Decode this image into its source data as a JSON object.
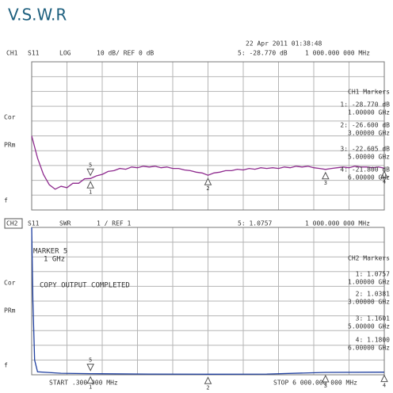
{
  "title": "V.S.W.R",
  "timestamp": "22 Apr 2011  01:38:48",
  "start_label": "START .300 000 MHz",
  "stop_label": "STOP 6 000.000 000 MHz",
  "chart_data": [
    {
      "type": "line",
      "channel": "CH1",
      "param": "S11",
      "format": "LOG",
      "scale": "10 dB/ REF 0 dB",
      "active_marker": "5: -28.770 dB",
      "active_freq": "1 000.000 000 MHz",
      "side_labels": [
        "Cor",
        "PRm",
        "f"
      ],
      "markers_title": "CH1 Markers",
      "xlim": [
        0.3,
        6000
      ],
      "ylim": [
        -50,
        50
      ],
      "x": [
        0.3,
        100,
        200,
        300,
        400,
        500,
        600,
        700,
        800,
        900,
        1000,
        1100,
        1200,
        1300,
        1400,
        1500,
        1600,
        1700,
        1800,
        1900,
        2000,
        2100,
        2200,
        2300,
        2400,
        2500,
        2600,
        2700,
        2800,
        2900,
        3000,
        3100,
        3200,
        3300,
        3400,
        3500,
        3600,
        3700,
        3800,
        3900,
        4000,
        4100,
        4200,
        4300,
        4400,
        4500,
        4600,
        4700,
        4800,
        4900,
        5000,
        5100,
        5200,
        5300,
        5400,
        5500,
        5600,
        5700,
        5800,
        5900,
        6000
      ],
      "series": [
        {
          "color": "#8e2a8e",
          "values": [
            0,
            -15,
            -26,
            -33,
            -36,
            -34,
            -35,
            -32,
            -32,
            -29,
            -28.77,
            -27,
            -26,
            -24,
            -23.5,
            -22,
            -22.5,
            -21,
            -21.5,
            -20.5,
            -21,
            -20.5,
            -21.5,
            -21,
            -22,
            -22,
            -23,
            -23.5,
            -24.5,
            -25,
            -26.6,
            -25,
            -24.5,
            -23.5,
            -23.5,
            -22.5,
            -23,
            -22,
            -22.5,
            -21.5,
            -22,
            -21.5,
            -22,
            -21,
            -21.5,
            -20.5,
            -21,
            -20.5,
            -21.5,
            -22,
            -22.6,
            -22,
            -21.5,
            -21,
            -21.5,
            -20.5,
            -21,
            -21,
            -21.5,
            -21,
            -21.8
          ]
        }
      ],
      "markers": [
        {
          "id": "1",
          "x": 1000,
          "value": -28.77,
          "value_label": "1: -28.770 dB",
          "freq_label": "1.00000 GHz"
        },
        {
          "id": "2",
          "x": 3000,
          "value": -26.6,
          "value_label": "2: -26.600 dB",
          "freq_label": "3.00000 GHz"
        },
        {
          "id": "3",
          "x": 5000,
          "value": -22.605,
          "value_label": "3: -22.605 dB",
          "freq_label": "5.00000 GHz"
        },
        {
          "id": "4",
          "x": 6000,
          "value": -21.8,
          "value_label": "4: -21.800 dB",
          "freq_label": "6.00000 GHz"
        },
        {
          "id": "5",
          "x": 1000,
          "value": -28.77
        }
      ]
    },
    {
      "type": "line",
      "channel": "CH2",
      "param": "S11",
      "format": "SWR",
      "scale": "1 / REF 1",
      "active_marker": "5: 1.0757",
      "active_freq": "1 000.000 000 MHz",
      "side_labels": [
        "Cor",
        "PRm",
        "f"
      ],
      "markers_title": "CH2 Markers",
      "notes": [
        "MARKER 5",
        "1 GHz",
        "COPY OUTPUT COMPLETED"
      ],
      "xlim": [
        0.3,
        6000
      ],
      "ylim": [
        1,
        11
      ],
      "x": [
        0.3,
        20,
        50,
        100,
        500,
        1000,
        2000,
        3000,
        4000,
        5000,
        6000
      ],
      "series": [
        {
          "color": "#1f3f9f",
          "values": [
            11,
            6,
            2,
            1.2,
            1.1,
            1.0757,
            1.05,
            1.0381,
            1.05,
            1.1601,
            1.18
          ]
        }
      ],
      "markers": [
        {
          "id": "1",
          "x": 1000,
          "value": 1.0757,
          "value_label": "1: 1.0757",
          "freq_label": "1.00000 GHz"
        },
        {
          "id": "2",
          "x": 3000,
          "value": 1.0381,
          "value_label": "2: 1.0381",
          "freq_label": "3.00000 GHz"
        },
        {
          "id": "3",
          "x": 5000,
          "value": 1.1601,
          "value_label": "3: 1.1601",
          "freq_label": "5.00000 GHz"
        },
        {
          "id": "4",
          "x": 6000,
          "value": 1.18,
          "value_label": "4: 1.1800",
          "freq_label": "6.00000 GHz"
        },
        {
          "id": "5",
          "x": 1000,
          "value": 1.0757
        }
      ]
    }
  ]
}
